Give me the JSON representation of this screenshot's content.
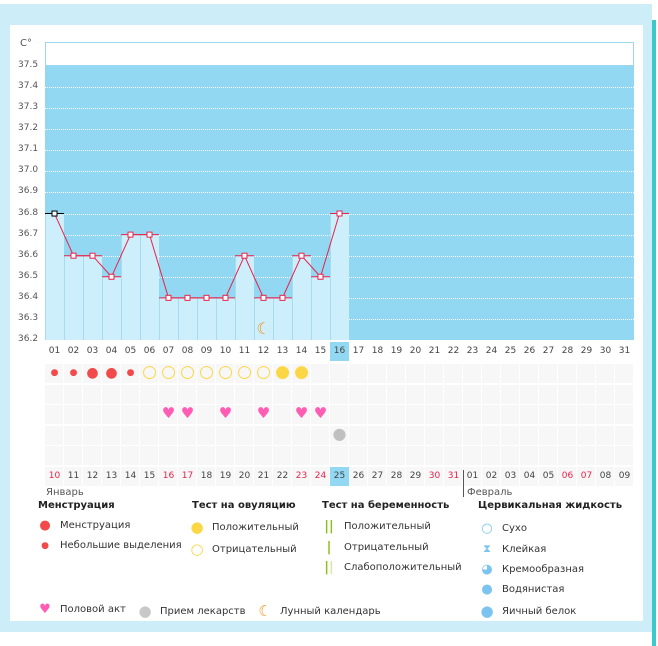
{
  "chart_data": {
    "type": "bar-line",
    "unit": "C°",
    "y_ticks": [
      "37.5",
      "37.4",
      "37.3",
      "37.2",
      "37.1",
      "37.0",
      "36.9",
      "36.8",
      "36.7",
      "36.6",
      "36.5",
      "36.4",
      "36.3",
      "36.2"
    ],
    "ylim": [
      36.2,
      37.5
    ],
    "cycle_days": [
      "01",
      "02",
      "03",
      "04",
      "05",
      "06",
      "07",
      "08",
      "09",
      "10",
      "11",
      "12",
      "13",
      "14",
      "15",
      "16",
      "17",
      "18",
      "19",
      "20",
      "21",
      "22",
      "23",
      "24",
      "25",
      "26",
      "27",
      "28",
      "29",
      "30",
      "31"
    ],
    "temperatures": [
      36.8,
      36.6,
      36.6,
      36.5,
      36.7,
      36.7,
      36.4,
      36.4,
      36.4,
      36.4,
      36.6,
      36.4,
      36.4,
      36.6,
      36.5,
      36.8
    ],
    "current_day_index": 15,
    "line_color": "#e8234a",
    "bar_color": "#cdeefb",
    "bg_color": "#93d8f2"
  },
  "markers": {
    "menstruation": [
      "small",
      "small",
      "large",
      "large",
      "small"
    ],
    "ovulation": [
      "neg",
      "neg",
      "neg",
      "neg",
      "neg",
      "neg",
      "neg",
      "pos",
      "pos"
    ],
    "ovulation_start_index": 5,
    "intercourse_days": [
      6,
      7,
      9,
      11,
      13,
      14
    ],
    "medication_days": [
      15
    ],
    "moon_days": [
      11
    ]
  },
  "dates": [
    {
      "d": "10",
      "r": true
    },
    {
      "d": "11"
    },
    {
      "d": "12"
    },
    {
      "d": "13"
    },
    {
      "d": "14"
    },
    {
      "d": "15"
    },
    {
      "d": "16",
      "r": true
    },
    {
      "d": "17",
      "r": true
    },
    {
      "d": "18"
    },
    {
      "d": "19"
    },
    {
      "d": "20"
    },
    {
      "d": "21"
    },
    {
      "d": "22"
    },
    {
      "d": "23",
      "r": true
    },
    {
      "d": "24",
      "r": true
    },
    {
      "d": "25"
    },
    {
      "d": "26"
    },
    {
      "d": "27"
    },
    {
      "d": "28"
    },
    {
      "d": "29"
    },
    {
      "d": "30",
      "r": true
    },
    {
      "d": "31",
      "r": true
    },
    {
      "d": "01"
    },
    {
      "d": "02"
    },
    {
      "d": "03"
    },
    {
      "d": "04"
    },
    {
      "d": "05"
    },
    {
      "d": "06",
      "r": true
    },
    {
      "d": "07",
      "r": true
    },
    {
      "d": "08"
    },
    {
      "d": "09"
    }
  ],
  "months": {
    "jan": "Январь",
    "feb": "Февраль"
  },
  "legend": {
    "menstruation": {
      "title": "Менструация",
      "items": [
        "Менструация",
        "Небольшие выделения"
      ]
    },
    "ovulation": {
      "title": "Тест на овуляцию",
      "items": [
        "Положительный",
        "Отрицательный"
      ]
    },
    "pregnancy": {
      "title": "Тест на беременность",
      "items": [
        "Положительный",
        "Отрицательный",
        "Слабоположительный"
      ]
    },
    "cervical": {
      "title": "Цервикальная жидкость",
      "items": [
        "Сухо",
        "Клейкая",
        "Кремообразная",
        "Водянистая",
        "Яичный белок"
      ]
    },
    "other": [
      "Половой акт",
      "Прием лекарств",
      "Лунный календарь"
    ]
  }
}
